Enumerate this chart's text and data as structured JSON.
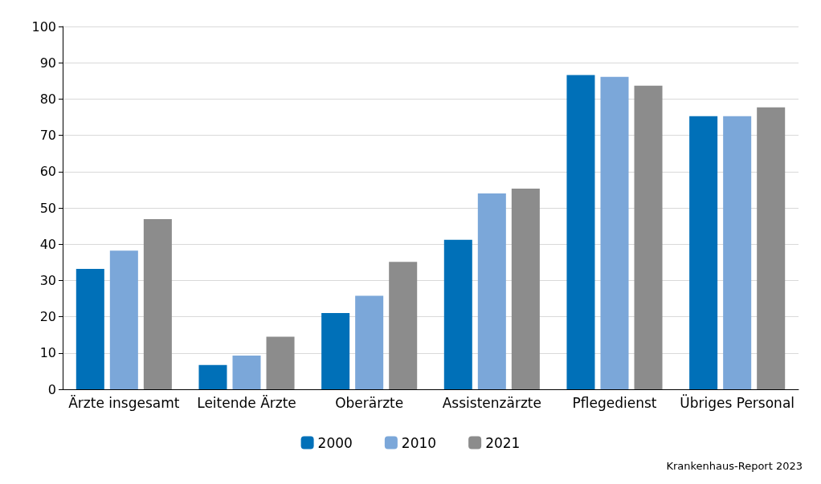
{
  "chart_data": {
    "type": "bar",
    "categories": [
      "Ärzte insgesamt",
      "Leitende Ärzte",
      "Oberärzte",
      "Assistenzärzte",
      "Pflegedienst",
      "Übriges Personal"
    ],
    "series": [
      {
        "name": "2000",
        "color": "#0070b8",
        "values": [
          33.2,
          6.7,
          21.0,
          41.2,
          86.6,
          75.3
        ]
      },
      {
        "name": "2010",
        "color": "#7ba7d9",
        "values": [
          38.2,
          9.3,
          25.8,
          54.0,
          86.1,
          75.3
        ]
      },
      {
        "name": "2021",
        "color": "#8c8c8c",
        "values": [
          46.9,
          14.5,
          35.1,
          55.3,
          83.7,
          77.7
        ]
      }
    ],
    "ylim": [
      0,
      100
    ],
    "yticks": [
      0,
      10,
      20,
      30,
      40,
      50,
      60,
      70,
      80,
      90,
      100
    ],
    "grid": "y",
    "legend": "bottom",
    "annotations": [
      "Krankenhaus-Report 2023"
    ]
  }
}
